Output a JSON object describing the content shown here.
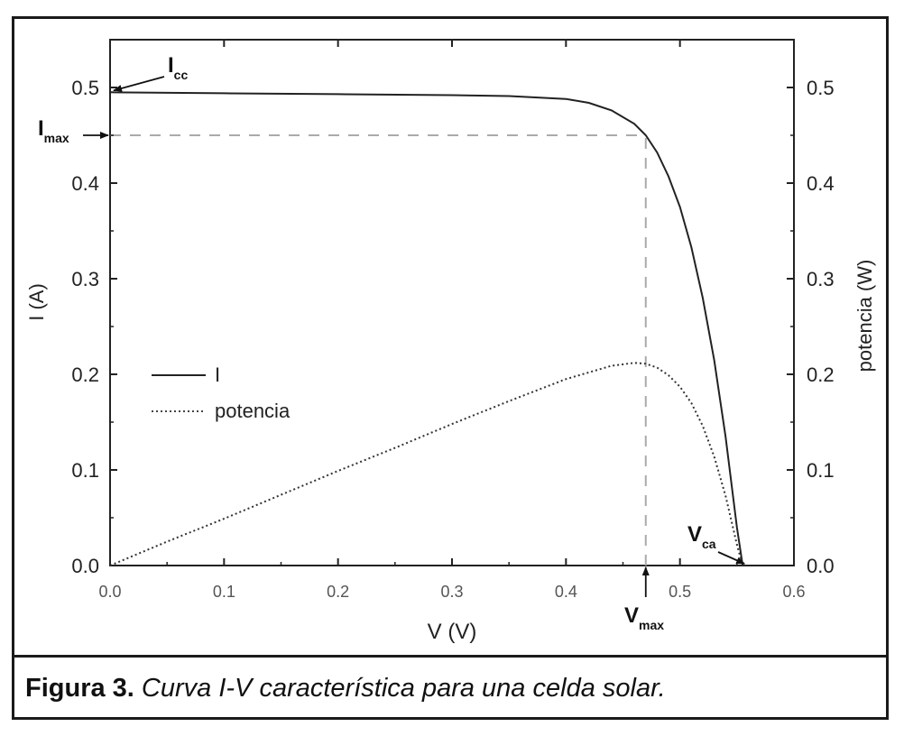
{
  "chart_data": {
    "type": "line",
    "xlabel": "V (V)",
    "ylabel": "I (A)",
    "ylabel_right": "potencia (W)",
    "xlim": [
      0.0,
      0.6
    ],
    "ylim": [
      0.0,
      0.55
    ],
    "ylim_right": [
      0.0,
      0.55
    ],
    "x_ticks": [
      "0.0",
      "0.1",
      "0.2",
      "0.3",
      "0.4",
      "0.5",
      "0.6"
    ],
    "y_ticks": [
      "0.0",
      "0.1",
      "0.2",
      "0.3",
      "0.4",
      "0.5"
    ],
    "y_ticks_right": [
      "0.0",
      "0.1",
      "0.2",
      "0.3",
      "0.4",
      "0.5"
    ],
    "grid": false,
    "legend_position": "middle-left",
    "series": [
      {
        "name": "I",
        "style": "solid",
        "color": "#222222",
        "x": [
          0.0,
          0.1,
          0.2,
          0.3,
          0.35,
          0.4,
          0.42,
          0.44,
          0.46,
          0.47,
          0.48,
          0.49,
          0.5,
          0.51,
          0.52,
          0.53,
          0.54,
          0.55,
          0.555
        ],
        "y": [
          0.495,
          0.494,
          0.493,
          0.492,
          0.491,
          0.488,
          0.484,
          0.476,
          0.462,
          0.45,
          0.432,
          0.407,
          0.375,
          0.333,
          0.28,
          0.215,
          0.135,
          0.04,
          0.0
        ]
      },
      {
        "name": "potencia",
        "style": "dotted",
        "color": "#333333",
        "x": [
          0.0,
          0.05,
          0.1,
          0.15,
          0.2,
          0.25,
          0.3,
          0.35,
          0.4,
          0.44,
          0.46,
          0.47,
          0.48,
          0.49,
          0.5,
          0.51,
          0.52,
          0.53,
          0.54,
          0.55,
          0.555
        ],
        "y": [
          0.0,
          0.025,
          0.049,
          0.074,
          0.099,
          0.123,
          0.148,
          0.172,
          0.195,
          0.209,
          0.212,
          0.211,
          0.207,
          0.199,
          0.187,
          0.17,
          0.146,
          0.114,
          0.073,
          0.022,
          0.0
        ]
      }
    ],
    "annotations": [
      {
        "base": "I",
        "sub": "cc",
        "x": 0.0,
        "y": 0.495
      },
      {
        "base": "I",
        "sub": "max",
        "x": 0.0,
        "y": 0.45
      },
      {
        "base": "V",
        "sub": "max",
        "x": 0.47,
        "y": 0.0
      },
      {
        "base": "V",
        "sub": "ca",
        "x": 0.555,
        "y": 0.0
      }
    ],
    "reference_lines": [
      {
        "orientation": "horizontal",
        "y": 0.45,
        "x_from": 0.0,
        "x_to": 0.47
      },
      {
        "orientation": "vertical",
        "x": 0.47,
        "y_from": 0.0,
        "y_to": 0.45
      }
    ]
  },
  "caption": {
    "lead": "Figura 3.",
    "rest": "Curva I-V característica para una celda solar."
  }
}
